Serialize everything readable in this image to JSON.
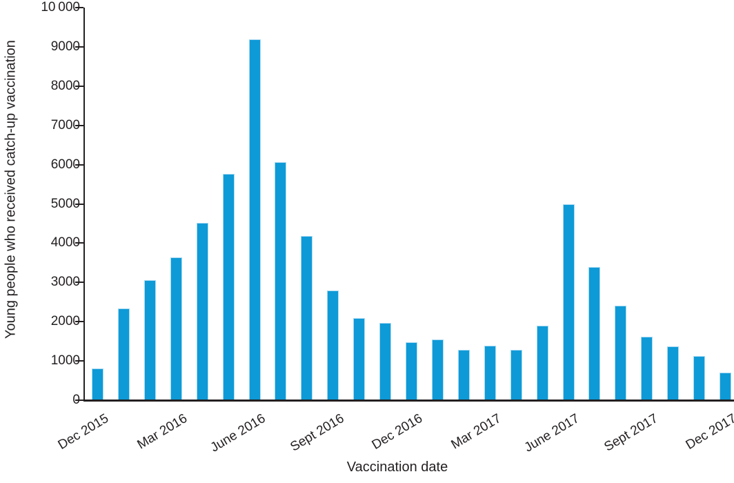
{
  "chart_data": {
    "type": "bar",
    "title": "",
    "xlabel": "Vaccination date",
    "ylabel": "Young people who received catch-up vaccination",
    "categories": [
      "Dec 2015",
      "Jan 2016",
      "Feb 2016",
      "Mar 2016",
      "Apr 2016",
      "May 2016",
      "June 2016",
      "July 2016",
      "Aug 2016",
      "Sept 2016",
      "Oct 2016",
      "Nov 2016",
      "Dec 2016",
      "Jan 2017",
      "Feb 2017",
      "Mar 2017",
      "Apr 2017",
      "May 2017",
      "June 2017",
      "July 2017",
      "Aug 2017",
      "Sept 2017",
      "Oct 2017",
      "Nov 2017",
      "Dec 2017"
    ],
    "values": [
      810,
      2330,
      3050,
      3640,
      4510,
      5760,
      9190,
      6070,
      4190,
      2790,
      2100,
      1960,
      1470,
      1550,
      1290,
      1380,
      1280,
      1890,
      5000,
      3400,
      2410,
      1610,
      1370,
      1130,
      700
    ],
    "x_tick_indices": [
      0,
      3,
      6,
      9,
      12,
      15,
      18,
      21,
      24
    ],
    "x_tick_labels": [
      "Dec 2015",
      "Mar 2016",
      "June 2016",
      "Sept 2016",
      "Dec 2016",
      "Mar 2017",
      "June 2017",
      "Sept 2017",
      "Dec 2017"
    ],
    "y_ticks": [
      0,
      1000,
      2000,
      3000,
      4000,
      5000,
      6000,
      7000,
      8000,
      9000,
      10000
    ],
    "y_tick_labels": [
      "0",
      "1000",
      "2000",
      "3000",
      "4000",
      "5000",
      "6000",
      "7000",
      "8000",
      "9000",
      "10 000"
    ],
    "ylim": [
      0,
      10000
    ],
    "grid": false,
    "legend": "none",
    "bar_color": "#0e9ad7",
    "bar_edge_color": "#a9daf2",
    "axis_color": "#231f20",
    "text_color": "#231f20"
  }
}
